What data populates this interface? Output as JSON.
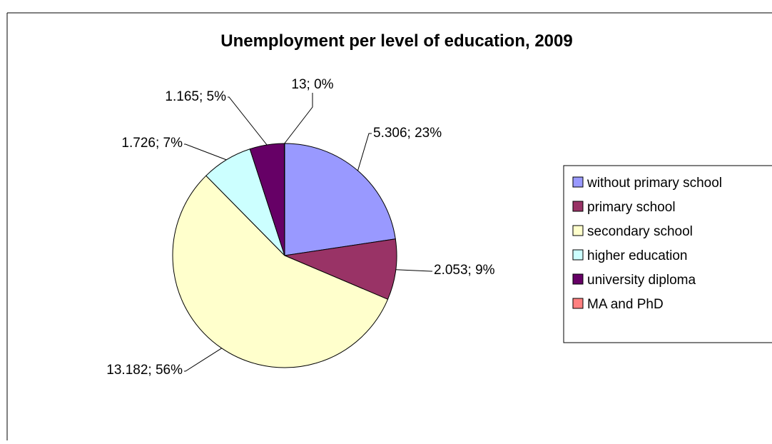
{
  "chart_data": {
    "type": "pie",
    "title": "Unemployment per level of education, 2009",
    "categories": [
      "without primary school",
      "primary school",
      "secondary school",
      "higher education",
      "university diploma",
      "MA and PhD"
    ],
    "values": [
      5306,
      2053,
      13182,
      1726,
      1165,
      13
    ],
    "data_labels": [
      "5.306; 23%",
      "2.053; 9%",
      "13.182; 56%",
      "1.726; 7%",
      "1.165; 5%",
      "13; 0%"
    ],
    "colors": [
      "#9999FF",
      "#993366",
      "#FFFFCC",
      "#CCFFFF",
      "#660066",
      "#FF8080"
    ],
    "start_angle": "12 o'clock",
    "direction": "clockwise",
    "legend_position": "right",
    "legend": [
      "without primary school",
      "primary school",
      "secondary school",
      "higher education",
      "university diploma",
      "MA and PhD"
    ]
  }
}
